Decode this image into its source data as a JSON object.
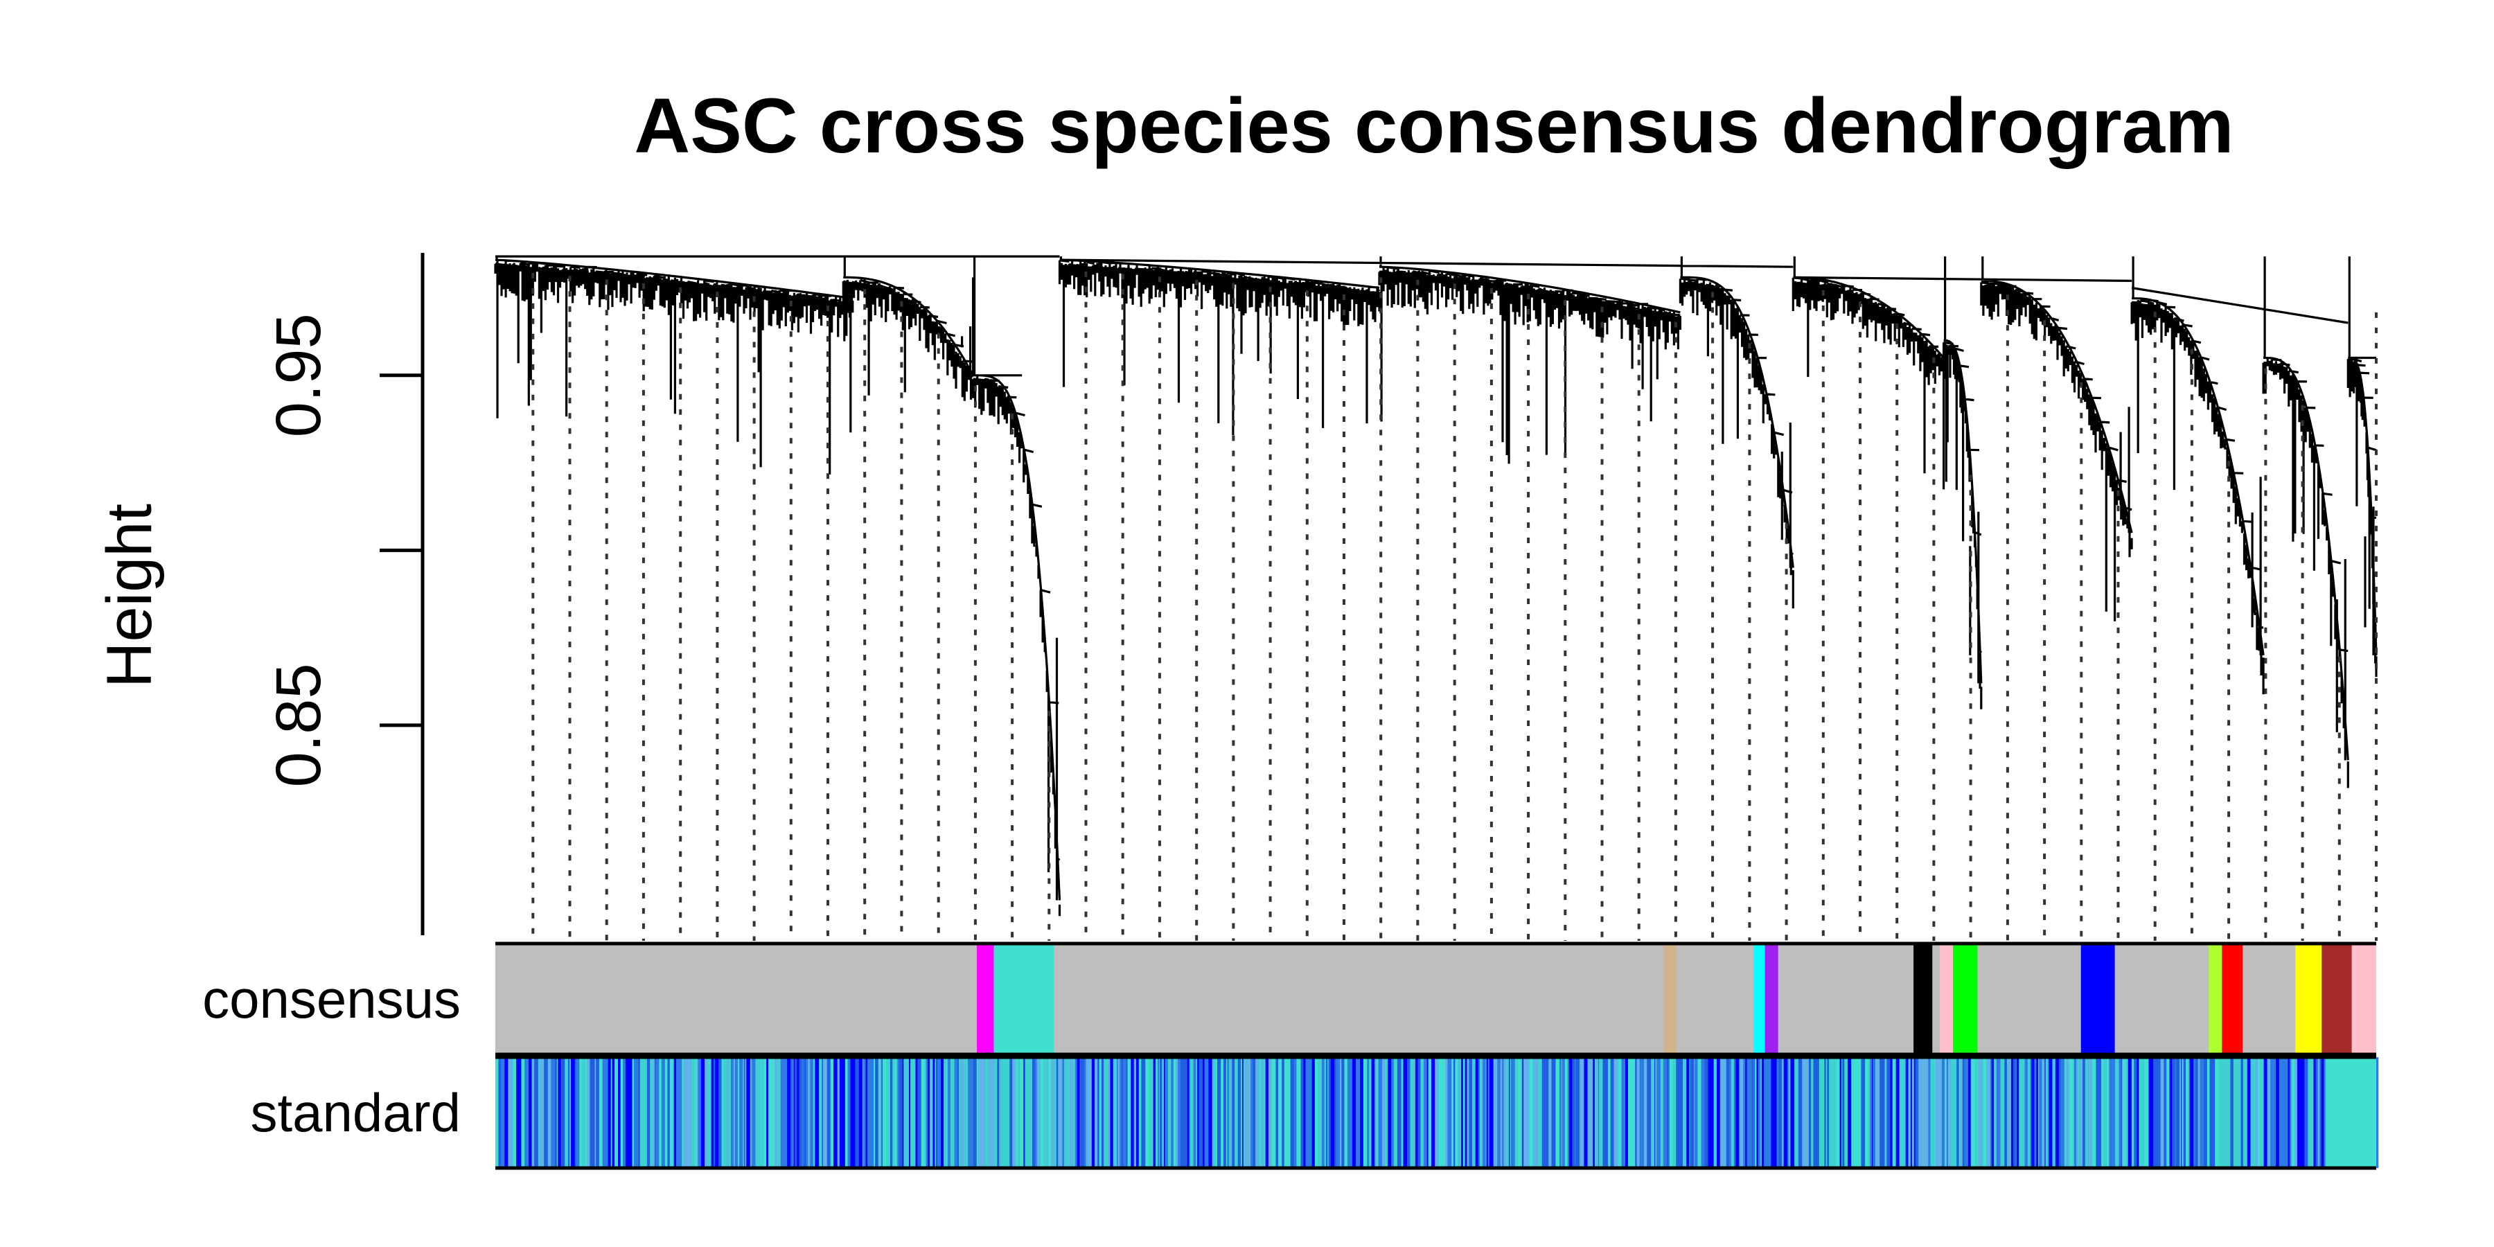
{
  "chart_data": {
    "type": "dendrogram",
    "title": "ASC cross species consensus dendrogram",
    "ylabel": "Height",
    "xlabel": "",
    "ylim": [
      0.79,
      0.985
    ],
    "y_ticks": [
      0.85,
      0.9,
      0.95
    ],
    "y_tick_labels": [
      "0.85",
      "",
      "0.95"
    ],
    "grid": false,
    "color_rows": [
      {
        "label": "consensus",
        "base_color": "#bebebe",
        "modules": [
          {
            "color": "#ff00ff",
            "start": 0.256,
            "end": 0.265
          },
          {
            "color": "#40e0d0",
            "start": 0.265,
            "end": 0.297
          },
          {
            "color": "#d2b48c",
            "start": 0.621,
            "end": 0.628
          },
          {
            "color": "#00ffff",
            "start": 0.669,
            "end": 0.675
          },
          {
            "color": "#a020f0",
            "start": 0.675,
            "end": 0.682
          },
          {
            "color": "#000000",
            "start": 0.754,
            "end": 0.764
          },
          {
            "color": "#ffc0cb",
            "start": 0.768,
            "end": 0.775
          },
          {
            "color": "#00ff00",
            "start": 0.775,
            "end": 0.788
          },
          {
            "color": "#0000ff",
            "start": 0.843,
            "end": 0.861
          },
          {
            "color": "#adff2f",
            "start": 0.911,
            "end": 0.918
          },
          {
            "color": "#ff0000",
            "start": 0.918,
            "end": 0.929
          },
          {
            "color": "#ffff00",
            "start": 0.957,
            "end": 0.971
          },
          {
            "color": "#a52a2a",
            "start": 0.971,
            "end": 0.987
          },
          {
            "color": "#ffc0cb",
            "start": 0.987,
            "end": 1.0
          }
        ]
      },
      {
        "label": "standard",
        "base_color": "#3a8ad8",
        "palette": [
          "#1f5fe0",
          "#40e0d0",
          "#2f7be6",
          "#0000ff",
          "#5fb3e8",
          "#3fd0d0"
        ],
        "solid_segments": [
          {
            "color": "#40e0d0",
            "start": 0.973,
            "end": 1.0
          },
          {
            "color": "#0000ff",
            "start": 0.183,
            "end": 0.186
          }
        ]
      }
    ],
    "dashed_guides": true,
    "merge_height": 0.984
  }
}
